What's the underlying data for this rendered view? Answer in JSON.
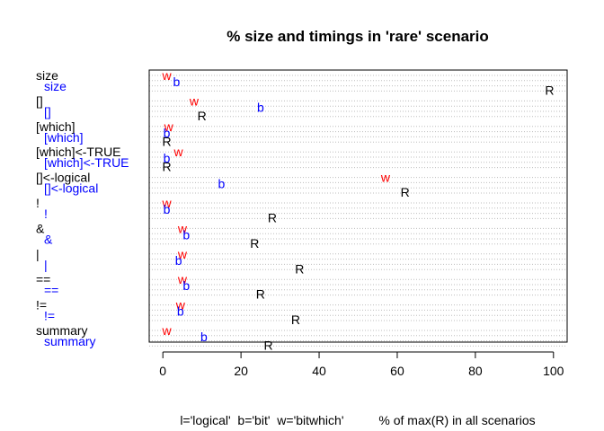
{
  "chart_data": {
    "type": "scatter",
    "title": "% size and timings in 'rare' scenario",
    "xlabel": "l='logical'  b='bit'  w='bitwhich'          % of max(R) in all scenarios",
    "ylabel": "",
    "xlim": [
      -3.5,
      103.5
    ],
    "x_ticks": [
      "0",
      "20",
      "40",
      "60",
      "80",
      "100"
    ],
    "x_tick_values": [
      0,
      20,
      40,
      60,
      80,
      100
    ],
    "grid": "horizontal dotted lines",
    "colors": {
      "R": "#000000",
      "b": "#0000ff",
      "w": "#ff0000"
    },
    "series": [
      {
        "name": "R",
        "marker": "R",
        "color": "#000000",
        "rows": [
          "size",
          "[]",
          "[which]",
          "[which]<-TRUE",
          "[]<-logical",
          "!",
          "&",
          "|",
          "==",
          "!=",
          "summary"
        ],
        "values": [
          99,
          10,
          1,
          1,
          62,
          28,
          23.5,
          35,
          25,
          34,
          27
        ]
      },
      {
        "name": "bit",
        "marker": "b",
        "color": "#0000ff",
        "rows": [
          "size",
          "[]",
          "[which]",
          "[which]<-TRUE",
          "[]<-logical",
          "!",
          "&",
          "|",
          "==",
          "!=",
          "summary"
        ],
        "values": [
          3.5,
          25,
          1,
          1,
          15,
          1,
          6,
          4,
          6,
          4.5,
          10.5
        ]
      },
      {
        "name": "bitwhich",
        "marker": "w",
        "color": "#ff0000",
        "rows": [
          "size",
          "[]",
          "[which]",
          "[which]<-TRUE",
          "[]<-logical",
          "!",
          "&",
          "|",
          "==",
          "!=",
          "summary"
        ],
        "values": [
          1,
          8,
          1.5,
          4,
          57,
          1,
          5,
          5,
          5,
          4.5,
          1
        ]
      }
    ]
  },
  "row_labels": [
    {
      "top": "size",
      "bottom": "size"
    },
    {
      "top": "[]",
      "bottom": "[]"
    },
    {
      "top": "[which]",
      "bottom": "[which]"
    },
    {
      "top": "[which]<-TRUE",
      "bottom": "[which]<-TRUE"
    },
    {
      "top": "[]<-logical",
      "bottom": "[]<-logical"
    },
    {
      "top": "!",
      "bottom": "!"
    },
    {
      "top": "&",
      "bottom": "&"
    },
    {
      "top": "|",
      "bottom": "|"
    },
    {
      "top": "==",
      "bottom": "=="
    },
    {
      "top": "!=",
      "bottom": "!="
    },
    {
      "top": "summary",
      "bottom": "summary"
    }
  ]
}
